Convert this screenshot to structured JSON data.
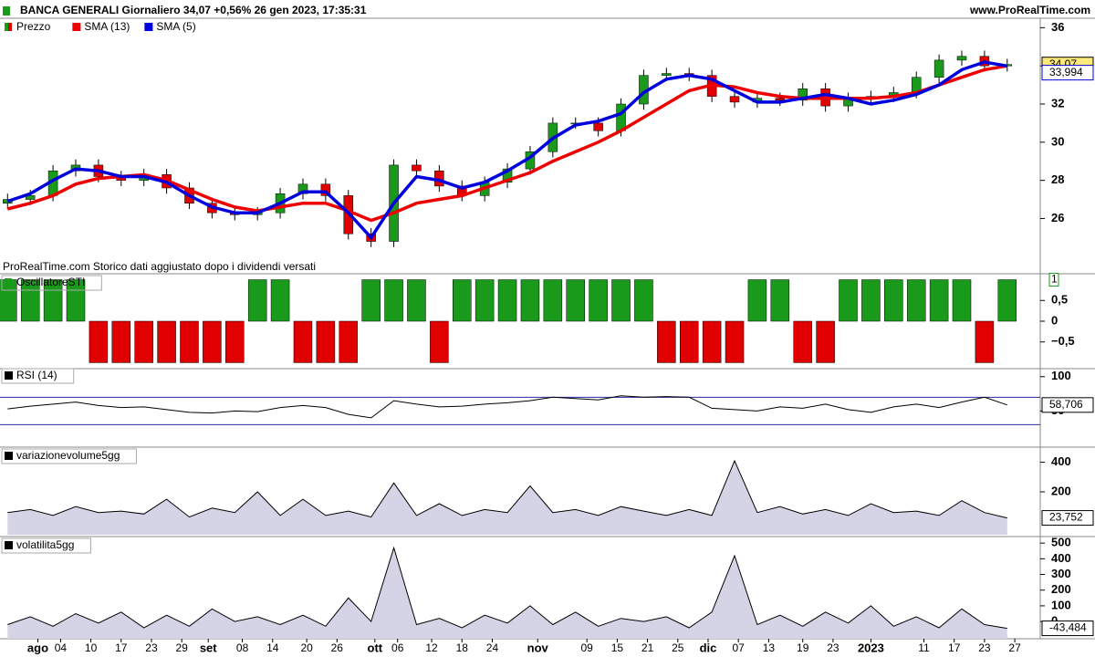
{
  "chart_data": [
    {
      "type": "candlestick",
      "title": "BANCA GENERALI Giornaliero 34,07 +0,56% 26 gen 2023, 17:35:31",
      "source": "www.ProRealTime.com",
      "note": "ProRealTime.com  Storico dati aggiustato dopo i dividendi versati",
      "price_name": "Prezzo",
      "up_color": "#1a9a1a",
      "down_color": "#e00000",
      "x": [
        1,
        4,
        7,
        10,
        13,
        16,
        19,
        22,
        25,
        28,
        31,
        34,
        37,
        40,
        43,
        46,
        49,
        52,
        55,
        58,
        61,
        64,
        67,
        70,
        73,
        76,
        79,
        82,
        85,
        88,
        91,
        94,
        97,
        100,
        103,
        106,
        109,
        112,
        115,
        118,
        121,
        124,
        127,
        130,
        133
      ],
      "open": [
        26.8,
        27.0,
        27.2,
        28.5,
        28.8,
        28.2,
        28.0,
        28.3,
        27.6,
        26.8,
        26.3,
        26.2,
        26.3,
        27.3,
        27.8,
        27.2,
        25.2,
        24.8,
        28.8,
        28.5,
        27.7,
        27.2,
        27.9,
        28.6,
        29.5,
        31.0,
        31.0,
        30.6,
        32.0,
        33.5,
        33.6,
        33.5,
        32.4,
        32.1,
        32.3,
        32.2,
        32.8,
        31.9,
        32.3,
        32.4,
        32.6,
        33.4,
        34.3,
        34.5,
        34.0
      ],
      "high": [
        27.3,
        27.5,
        28.8,
        29.1,
        29.1,
        28.5,
        28.6,
        28.6,
        27.9,
        27.1,
        26.6,
        26.6,
        27.6,
        28.1,
        28.1,
        27.5,
        25.5,
        29.1,
        29.1,
        28.8,
        28.0,
        28.2,
        28.9,
        29.8,
        31.3,
        31.3,
        31.3,
        32.3,
        33.8,
        33.9,
        33.9,
        33.8,
        32.7,
        32.6,
        32.6,
        33.1,
        33.1,
        32.6,
        32.7,
        32.9,
        33.7,
        34.6,
        34.8,
        34.8,
        34.37
      ],
      "low": [
        26.5,
        26.7,
        26.9,
        28.2,
        27.9,
        27.7,
        27.7,
        27.3,
        26.5,
        26.0,
        25.9,
        25.9,
        26.0,
        27.0,
        26.9,
        24.9,
        24.5,
        24.5,
        28.2,
        27.4,
        26.9,
        26.9,
        27.6,
        28.3,
        29.2,
        30.7,
        30.3,
        30.3,
        31.7,
        33.2,
        33.2,
        32.1,
        31.8,
        31.8,
        31.9,
        31.9,
        31.6,
        31.6,
        32.0,
        32.1,
        32.3,
        33.1,
        34.0,
        33.7,
        33.7
      ],
      "close": [
        27.0,
        27.2,
        28.5,
        28.8,
        28.2,
        28.0,
        28.3,
        27.6,
        26.8,
        26.3,
        26.2,
        26.3,
        27.3,
        27.8,
        27.2,
        25.2,
        24.8,
        28.8,
        28.5,
        27.7,
        27.2,
        27.9,
        28.6,
        29.5,
        31.0,
        31.0,
        30.6,
        32.0,
        33.5,
        33.6,
        33.5,
        32.4,
        32.1,
        32.3,
        32.2,
        32.8,
        31.9,
        32.3,
        32.4,
        32.6,
        33.4,
        34.3,
        34.5,
        34.0,
        34.07
      ],
      "series": [
        {
          "name": "SMA (13)",
          "color": "#ee0000",
          "values": [
            26.5,
            26.8,
            27.2,
            27.8,
            28.1,
            28.2,
            28.3,
            28.0,
            27.5,
            27.0,
            26.6,
            26.4,
            26.6,
            26.8,
            26.8,
            26.4,
            25.9,
            26.3,
            26.8,
            27.0,
            27.2,
            27.6,
            28.0,
            28.4,
            29.0,
            29.5,
            30.0,
            30.6,
            31.3,
            32.0,
            32.7,
            33.0,
            32.9,
            32.6,
            32.4,
            32.3,
            32.3,
            32.3,
            32.3,
            32.4,
            32.6,
            33.0,
            33.4,
            33.8,
            34.0
          ]
        },
        {
          "name": "SMA (5)",
          "color": "#0000dd",
          "values": [
            26.9,
            27.3,
            28.0,
            28.6,
            28.5,
            28.2,
            28.2,
            27.9,
            27.2,
            26.6,
            26.3,
            26.3,
            26.8,
            27.4,
            27.4,
            26.3,
            25.0,
            26.8,
            28.2,
            28.0,
            27.6,
            27.9,
            28.5,
            29.2,
            30.2,
            30.9,
            31.1,
            31.5,
            32.6,
            33.3,
            33.5,
            33.3,
            32.7,
            32.1,
            32.1,
            32.3,
            32.5,
            32.3,
            32.0,
            32.2,
            32.5,
            33.0,
            33.8,
            34.2,
            33.994
          ]
        }
      ],
      "last_labels": [
        "34,07",
        "33,994"
      ],
      "xlim": [
        0,
        137
      ],
      "ylim": [
        23.2,
        36.4
      ],
      "yticks": [
        26,
        28,
        30,
        32,
        34,
        36
      ]
    },
    {
      "type": "bar",
      "name": "OscillatoreSTI",
      "up_color": "#1a9a1a",
      "down_color": "#e00000",
      "x": [
        1,
        4,
        7,
        10,
        13,
        16,
        19,
        22,
        25,
        28,
        31,
        34,
        37,
        40,
        43,
        46,
        49,
        52,
        55,
        58,
        61,
        64,
        67,
        70,
        73,
        76,
        79,
        82,
        85,
        88,
        91,
        94,
        97,
        100,
        103,
        106,
        109,
        112,
        115,
        118,
        121,
        124,
        127,
        130,
        133
      ],
      "values": [
        1,
        1,
        1,
        1,
        -1,
        -1,
        -1,
        -1,
        -1,
        -1,
        -1,
        1,
        1,
        -1,
        -1,
        -1,
        1,
        1,
        1,
        -1,
        1,
        1,
        1,
        1,
        1,
        1,
        1,
        1,
        1,
        -1,
        -1,
        -1,
        -1,
        1,
        1,
        -1,
        -1,
        1,
        1,
        1,
        1,
        1,
        1,
        -1,
        1
      ],
      "last_label": "1",
      "xlim": [
        0,
        137
      ],
      "ylim": [
        -1.1,
        1.1
      ],
      "yticks": [
        {
          "value": 0.5,
          "label": "0,5"
        },
        0,
        {
          "value": -0.5,
          "label": "−0,5"
        }
      ]
    },
    {
      "type": "line",
      "name": "RSI (14)",
      "color": "#000000",
      "hline_color": "#2a2aa0",
      "hlines": [
        70,
        30
      ],
      "x": [
        1,
        4,
        7,
        10,
        13,
        16,
        19,
        22,
        25,
        28,
        31,
        34,
        37,
        40,
        43,
        46,
        49,
        52,
        55,
        58,
        61,
        64,
        67,
        70,
        73,
        76,
        79,
        82,
        85,
        88,
        91,
        94,
        97,
        100,
        103,
        106,
        109,
        112,
        115,
        118,
        121,
        124,
        127,
        130,
        133
      ],
      "values": [
        53,
        57,
        60,
        63,
        58,
        55,
        56,
        52,
        48,
        47,
        50,
        49,
        55,
        58,
        55,
        45,
        40,
        65,
        60,
        56,
        57,
        60,
        62,
        65,
        70,
        68,
        66,
        72,
        70,
        71,
        70,
        54,
        52,
        50,
        56,
        54,
        60,
        52,
        48,
        56,
        60,
        55,
        63,
        70,
        58.706
      ],
      "last_label": "58,706",
      "xlim": [
        0,
        137
      ],
      "ylim": [
        0,
        109
      ],
      "yticks": [
        100,
        50
      ]
    },
    {
      "type": "area",
      "name": "variazionevolume5gg",
      "color": "#d4d4e6",
      "x": [
        1,
        4,
        7,
        10,
        13,
        16,
        19,
        22,
        25,
        28,
        31,
        34,
        37,
        40,
        43,
        46,
        49,
        52,
        55,
        58,
        61,
        64,
        67,
        70,
        73,
        76,
        79,
        82,
        85,
        88,
        91,
        94,
        97,
        100,
        103,
        106,
        109,
        112,
        115,
        118,
        121,
        124,
        127,
        130,
        133
      ],
      "values": [
        60,
        80,
        40,
        100,
        60,
        70,
        50,
        150,
        30,
        90,
        60,
        200,
        40,
        150,
        40,
        70,
        30,
        260,
        40,
        120,
        40,
        80,
        60,
        240,
        60,
        80,
        40,
        100,
        70,
        40,
        80,
        40,
        410,
        60,
        100,
        50,
        80,
        40,
        120,
        60,
        70,
        40,
        140,
        60,
        23.752
      ],
      "last_label": "23,752",
      "xlim": [
        0,
        137
      ],
      "ylim": [
        -90,
        490
      ],
      "yticks": [
        400,
        200
      ]
    },
    {
      "type": "area",
      "name": "volatilita5gg",
      "color": "#d4d4e6",
      "x": [
        1,
        4,
        7,
        10,
        13,
        16,
        19,
        22,
        25,
        28,
        31,
        34,
        37,
        40,
        43,
        46,
        49,
        52,
        55,
        58,
        61,
        64,
        67,
        70,
        73,
        76,
        79,
        82,
        85,
        88,
        91,
        94,
        97,
        100,
        103,
        106,
        109,
        112,
        115,
        118,
        121,
        124,
        127,
        130,
        133
      ],
      "values": [
        -20,
        30,
        -30,
        50,
        -10,
        60,
        -40,
        40,
        -30,
        80,
        0,
        30,
        -20,
        40,
        -30,
        150,
        0,
        470,
        -20,
        20,
        -40,
        40,
        -10,
        100,
        -20,
        60,
        -30,
        20,
        0,
        30,
        -40,
        60,
        420,
        -20,
        40,
        -30,
        60,
        -10,
        100,
        -30,
        30,
        -40,
        80,
        -20,
        -43.484
      ],
      "last_label": "-43,484",
      "xlim": [
        0,
        137
      ],
      "ylim": [
        -110,
        530
      ],
      "yticks": [
        500,
        400,
        300,
        200,
        100,
        0
      ],
      "xticks": [
        {
          "value": 5,
          "label": "ago"
        },
        {
          "value": 8,
          "label": "04"
        },
        {
          "value": 12,
          "label": "10"
        },
        {
          "value": 16,
          "label": "17"
        },
        {
          "value": 20,
          "label": "23"
        },
        {
          "value": 24,
          "label": "29"
        },
        {
          "value": 27.5,
          "label": "set"
        },
        {
          "value": 32,
          "label": "08"
        },
        {
          "value": 36,
          "label": "14"
        },
        {
          "value": 40.5,
          "label": "20"
        },
        {
          "value": 44.5,
          "label": "26"
        },
        {
          "value": 49.5,
          "label": "ott"
        },
        {
          "value": 52.5,
          "label": "06"
        },
        {
          "value": 57,
          "label": "12"
        },
        {
          "value": 61,
          "label": "18"
        },
        {
          "value": 65,
          "label": "24"
        },
        {
          "value": 71,
          "label": "nov"
        },
        {
          "value": 77.5,
          "label": "09"
        },
        {
          "value": 81.5,
          "label": "15"
        },
        {
          "value": 85.5,
          "label": "21"
        },
        {
          "value": 89.5,
          "label": "25"
        },
        {
          "value": 93.5,
          "label": "dic"
        },
        {
          "value": 97.5,
          "label": "07"
        },
        {
          "value": 101.5,
          "label": "13"
        },
        {
          "value": 106,
          "label": "19"
        },
        {
          "value": 110,
          "label": "23"
        },
        {
          "value": 115,
          "label": "2023"
        },
        {
          "value": 122,
          "label": "11"
        },
        {
          "value": 126,
          "label": "17"
        },
        {
          "value": 130,
          "label": "23"
        },
        {
          "value": 134,
          "label": "27"
        }
      ]
    }
  ]
}
